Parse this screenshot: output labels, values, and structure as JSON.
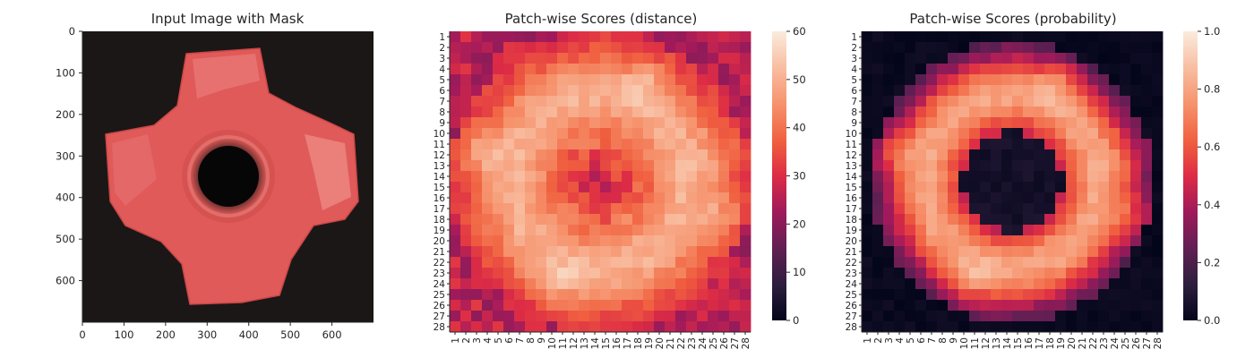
{
  "chart_data": [
    {
      "type": "image",
      "title": "Input Image with Mask",
      "xlim": [
        0,
        700
      ],
      "ylim": [
        700,
        0
      ],
      "xticks": [
        "0",
        "100",
        "200",
        "300",
        "400",
        "500",
        "600"
      ],
      "yticks": [
        "0",
        "100",
        "200",
        "300",
        "400",
        "500",
        "600"
      ],
      "colors": {
        "background": "#1b1716",
        "mask": "#e35d5c",
        "mask_highlight": "#f4b0a8",
        "hole": "#070707"
      }
    },
    {
      "type": "heatmap",
      "title": "Patch-wise Scores (distance)",
      "rows": 28,
      "cols": 28,
      "row_labels": [
        "1",
        "2",
        "3",
        "4",
        "5",
        "6",
        "7",
        "8",
        "9",
        "10",
        "11",
        "12",
        "13",
        "14",
        "15",
        "16",
        "17",
        "18",
        "19",
        "20",
        "21",
        "22",
        "23",
        "24",
        "25",
        "26",
        "27",
        "28"
      ],
      "col_labels": [
        "1",
        "2",
        "3",
        "4",
        "5",
        "6",
        "7",
        "8",
        "9",
        "10",
        "11",
        "12",
        "13",
        "14",
        "15",
        "16",
        "17",
        "18",
        "19",
        "20",
        "21",
        "22",
        "23",
        "24",
        "25",
        "26",
        "27",
        "28"
      ],
      "colorbar": {
        "min": 0,
        "max": 60,
        "ticks": [
          "0",
          "10",
          "20",
          "30",
          "40",
          "50",
          "60"
        ]
      },
      "colormap": "rocket",
      "pattern": {
        "ring_center": [
          14.5,
          14.5
        ],
        "values_summary": "high ring (45-60) around low center (25-35); corners 20-35",
        "hotspots": [
          [
            11.5,
            3
          ],
          [
            18,
            26
          ],
          [
            24,
            10.5
          ],
          [
            5,
            19
          ]
        ]
      }
    },
    {
      "type": "heatmap",
      "title": "Patch-wise Scores (probability)",
      "rows": 28,
      "cols": 28,
      "row_labels": [
        "1",
        "2",
        "3",
        "4",
        "5",
        "6",
        "7",
        "8",
        "9",
        "10",
        "11",
        "12",
        "13",
        "14",
        "15",
        "16",
        "17",
        "18",
        "19",
        "20",
        "21",
        "22",
        "23",
        "24",
        "25",
        "26",
        "27",
        "28"
      ],
      "col_labels": [
        "1",
        "2",
        "3",
        "4",
        "5",
        "6",
        "7",
        "8",
        "9",
        "10",
        "11",
        "12",
        "13",
        "14",
        "15",
        "16",
        "17",
        "18",
        "19",
        "20",
        "21",
        "22",
        "23",
        "24",
        "25",
        "26",
        "27",
        "28"
      ],
      "colorbar": {
        "min": 0.0,
        "max": 1.0,
        "ticks": [
          "0.0",
          "0.2",
          "0.4",
          "0.6",
          "0.8",
          "1.0"
        ]
      },
      "colormap": "rocket",
      "pattern": {
        "ring_center": [
          14.5,
          14.5
        ],
        "values_summary": "ring ~0.7-0.95 around near-zero center; corners near 0",
        "hotspots": [
          [
            11.5,
            3
          ],
          [
            18,
            26
          ],
          [
            24,
            10.5
          ]
        ]
      }
    }
  ]
}
